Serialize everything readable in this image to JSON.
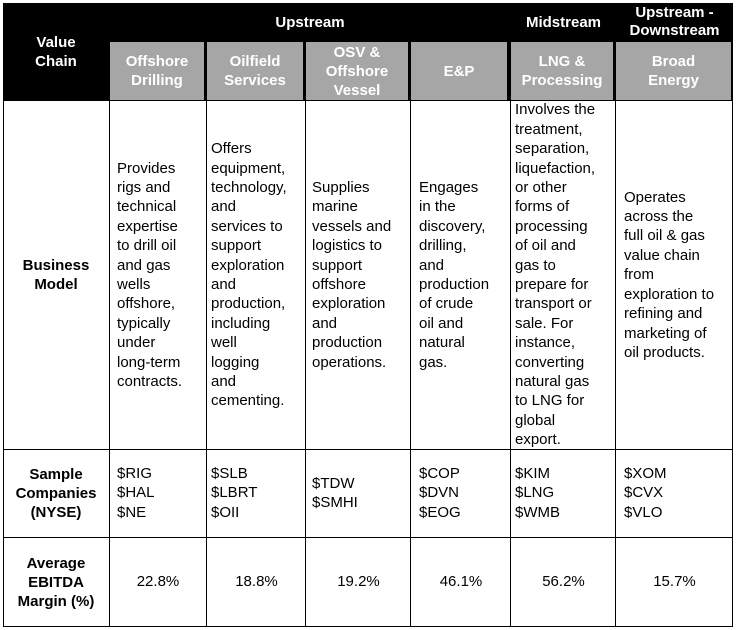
{
  "header": {
    "value_chain": "Value\nChain",
    "upstream": "Upstream",
    "midstream": "Midstream",
    "up_down": "Upstream -\nDownstream"
  },
  "columns": [
    {
      "label": "Offshore\nDrilling"
    },
    {
      "label": "Oilfield\nServices"
    },
    {
      "label": "OSV &\nOffshore\nVessel"
    },
    {
      "label": "E&P"
    },
    {
      "label": "LNG &\nProcessing"
    },
    {
      "label": "Broad\nEnergy"
    }
  ],
  "rows": {
    "business_model": {
      "label": "Business\nModel",
      "cells": [
        "Provides\nrigs and\ntechnical\nexpertise\nto drill oil\nand gas\nwells\noffshore,\ntypically\nunder\nlong-term\ncontracts.",
        "Offers\nequipment,\ntechnology,\nand\nservices to\nsupport\nexploration\nand\nproduction,\nincluding\nwell\nlogging\nand\ncementing.",
        "Supplies\nmarine\nvessels and\nlogistics to\nsupport\noffshore\nexploration\nand\nproduction\noperations.",
        "Engages\nin the\ndiscovery,\ndrilling,\nand\nproduction\nof crude\noil and\nnatural\ngas.",
        "Involves the\ntreatment,\nseparation,\nliquefaction,\nor other\nforms of\nprocessing\nof oil and\ngas to\nprepare for\ntransport or\nsale. For\ninstance,\nconverting\nnatural gas\nto LNG for\nglobal\nexport.",
        "Operates\nacross the\nfull oil & gas\nvalue chain\nfrom\nexploration to\nrefining and\nmarketing of\noil products."
      ]
    },
    "sample_companies": {
      "label": "Sample\nCompanies\n(NYSE)",
      "cells": [
        "$RIG\n$HAL\n$NE",
        "$SLB\n$LBRT\n$OII",
        "$TDW\n$SMHI",
        "$COP\n$DVN\n$EOG",
        "$KIM\n$LNG\n$WMB",
        "$XOM\n$CVX\n$VLO"
      ]
    },
    "ebitda": {
      "label": "Average\nEBITDA\nMargin (%)",
      "cells": [
        "22.8%",
        "18.8%",
        "19.2%",
        "46.1%",
        "56.2%",
        "15.7%"
      ]
    }
  }
}
